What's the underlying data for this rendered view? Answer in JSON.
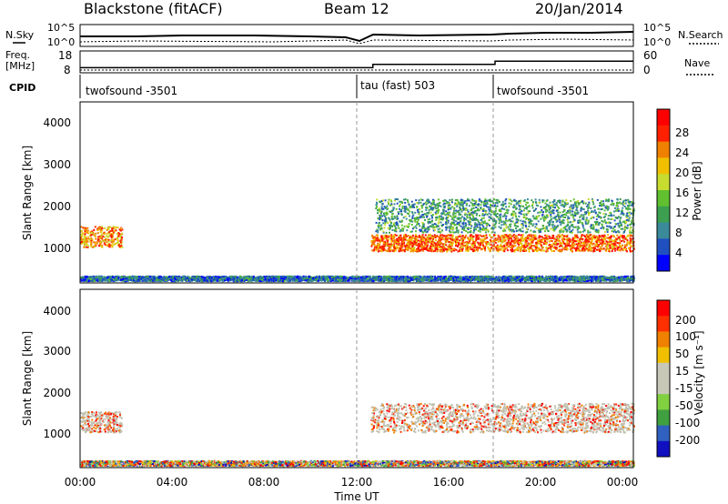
{
  "header": {
    "station": "Blackstone (fitACF)",
    "beam": "Beam 12",
    "date": "20/Jan/2014"
  },
  "top_panels": {
    "nsky_label": "N.Sky",
    "nsky_ticks": [
      "10^5",
      "10^0"
    ],
    "nsearch_label": "N.Search",
    "nsearch_ticks": [
      "10^5",
      "10^0"
    ],
    "freq_label": "Freq.",
    "freq_unit": "[MHz]",
    "freq_ticks": [
      "18",
      "8"
    ],
    "nave_label": "Nave",
    "nave_ticks": [
      "60",
      "0"
    ],
    "cpid_label": "CPID",
    "cpid_segments": [
      {
        "label": "twofsound -3501",
        "start": 0,
        "end": 12.5
      },
      {
        "label": "tau (fast) 503",
        "start": 12.5,
        "end": 18
      },
      {
        "label": "twofsound -3501",
        "start": 18,
        "end": 24
      }
    ],
    "freq_steps": [
      {
        "start": 0,
        "end": 12.7,
        "value": 10
      },
      {
        "start": 12.7,
        "end": 18,
        "value": 12
      },
      {
        "start": 18,
        "end": 24,
        "value": 14
      }
    ]
  },
  "chart_data": [
    {
      "type": "heatmap",
      "panel": "power",
      "ylabel": "Slant Range [km]",
      "yticks": [
        "4000",
        "3000",
        "2000",
        "1000"
      ],
      "ylim": [
        180,
        4500
      ],
      "xlim": [
        0,
        24
      ],
      "colorbar_label": "Power [dB]",
      "colorbar_ticks": [
        "28",
        "24",
        "20",
        "16",
        "12",
        "8",
        "4"
      ],
      "colorbar_range": [
        0,
        32
      ],
      "colorbar_colors": [
        "#0000ff",
        "#2050c0",
        "#3a8a9a",
        "#3ca050",
        "#60c030",
        "#c8dc30",
        "#f0c000",
        "#f08000",
        "#ff2000",
        "#ff0000"
      ],
      "echo_bands": [
        {
          "t0": 0.0,
          "t1": 1.8,
          "range": 1300,
          "spread": 250,
          "power": 24
        },
        {
          "t0": 12.6,
          "t1": 24.0,
          "range": 1150,
          "spread": 200,
          "power": 26
        },
        {
          "t0": 12.8,
          "t1": 24.0,
          "range": 1800,
          "spread": 400,
          "power": 10
        },
        {
          "t0": 0.0,
          "t1": 24.0,
          "range": 300,
          "spread": 60,
          "power": 6
        }
      ]
    },
    {
      "type": "heatmap",
      "panel": "velocity",
      "ylabel": "Slant Range [km]",
      "yticks": [
        "4000",
        "3000",
        "2000",
        "1000"
      ],
      "ylim": [
        180,
        4500
      ],
      "xlim": [
        0,
        24
      ],
      "xticks": [
        "00:00",
        "04:00",
        "08:00",
        "12:00",
        "16:00",
        "20:00",
        "00:00"
      ],
      "xlabel": "Time UT",
      "colorbar_label": "Velocity [m s⁻¹]",
      "colorbar_ticks": [
        "200",
        "100",
        "50",
        "15",
        "-15",
        "-50",
        "-100",
        "-200"
      ],
      "colorbar_colors": [
        "#1010c0",
        "#3060c0",
        "#40a040",
        "#80d040",
        "#c8c8b8",
        "#c8c8b8",
        "#f0c000",
        "#f08000",
        "#ff3000",
        "#ff0000"
      ],
      "echo_bands": [
        {
          "t0": 0.0,
          "t1": 1.8,
          "range": 1300,
          "spread": 250,
          "velocity": 0
        },
        {
          "t0": 12.6,
          "t1": 24.0,
          "range": 1400,
          "spread": 350,
          "velocity": 0
        },
        {
          "t0": 0.0,
          "t1": 24.0,
          "range": 300,
          "spread": 60,
          "velocity": 30
        }
      ]
    }
  ],
  "colors": {
    "background": "#ffffff",
    "axes": "#000000",
    "ground_scatter": "#c0c0b0"
  }
}
